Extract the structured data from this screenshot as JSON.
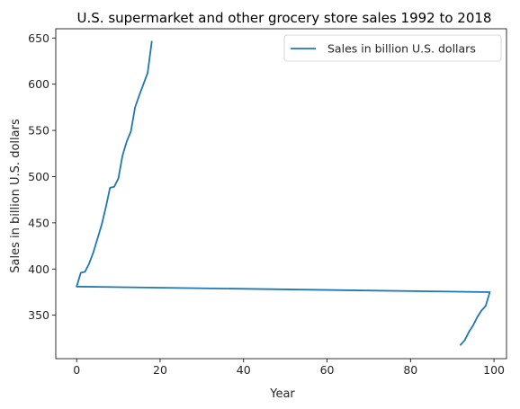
{
  "chart_data": {
    "type": "line",
    "title": "U.S. supermarket and other grocery store sales 1992 to 2018",
    "xlabel": "Year",
    "ylabel": "Sales in billion U.S. dollars",
    "xlim": [
      -5,
      103
    ],
    "ylim": [
      303,
      660
    ],
    "xticks": [
      0,
      20,
      40,
      60,
      80,
      100
    ],
    "yticks": [
      350,
      400,
      450,
      500,
      550,
      600,
      650
    ],
    "grid": false,
    "legend_position": "top-right",
    "series": [
      {
        "name": "Sales in billion U.S. dollars",
        "color": "#1f77b4",
        "x": [
          92,
          93,
          94,
          95,
          96,
          97,
          98,
          99,
          0,
          1,
          2,
          3,
          4,
          5,
          6,
          7,
          8,
          9,
          10,
          11,
          12,
          13,
          14,
          15,
          16,
          17,
          18
        ],
        "values": [
          318,
          323,
          332,
          339,
          348,
          355,
          360,
          375,
          381,
          396,
          397,
          406,
          418,
          433,
          448,
          467,
          488,
          489,
          498,
          523,
          538,
          549,
          575,
          588,
          600,
          612,
          646
        ]
      }
    ]
  }
}
